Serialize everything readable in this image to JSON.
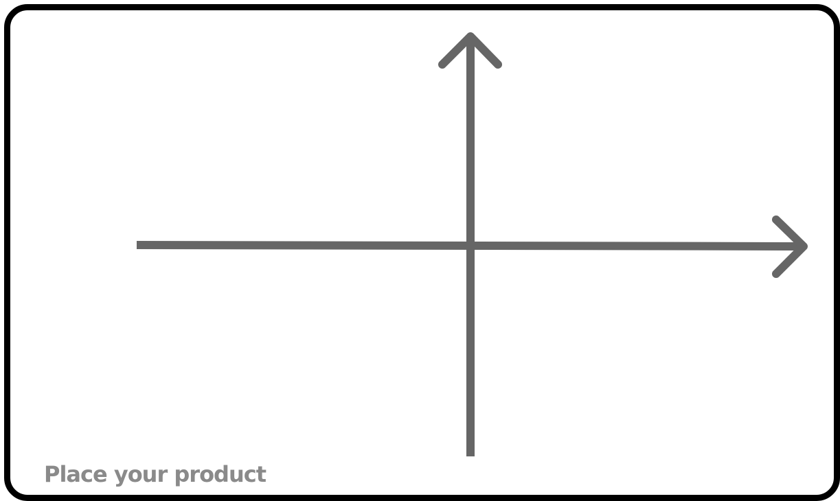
{
  "canvas": {
    "caption": "Place your product"
  },
  "colors": {
    "frame": "#000000",
    "axis": "#666666",
    "caption": "#8a8a8a",
    "background": "#ffffff"
  },
  "axes": {
    "horizontal_name": "",
    "vertical_name": ""
  }
}
